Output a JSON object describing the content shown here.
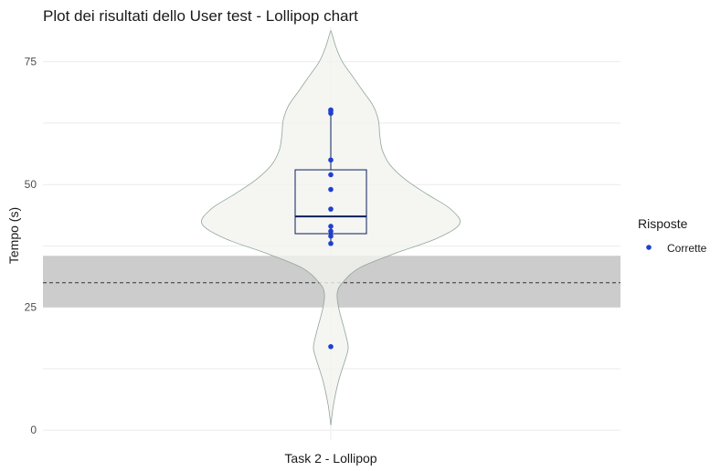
{
  "chart_data": {
    "type": "violin-box-scatter",
    "title": "Plot dei risultati dello User test - Lollipop chart",
    "xlabel": "",
    "ylabel": "Tempo (s)",
    "categories": [
      "Task 2 - Lollipop"
    ],
    "ylim": [
      -2,
      82
    ],
    "yticks": [
      0,
      25,
      50,
      75
    ],
    "points": [
      17,
      38,
      39.5,
      40.5,
      41.5,
      45,
      49,
      52,
      55,
      64.5,
      65,
      65.2
    ],
    "box": {
      "q1": 40,
      "median": 43.5,
      "q3": 53,
      "whisker_low": 38,
      "whisker_high": 65.2
    },
    "violin": [
      [
        1,
        0
      ],
      [
        5,
        0.02
      ],
      [
        10,
        0.06
      ],
      [
        15,
        0.12
      ],
      [
        17,
        0.135
      ],
      [
        20,
        0.11
      ],
      [
        25,
        0.06
      ],
      [
        28,
        0.05
      ],
      [
        30,
        0.09
      ],
      [
        33,
        0.22
      ],
      [
        36,
        0.5
      ],
      [
        39,
        0.82
      ],
      [
        42,
        1.0
      ],
      [
        45,
        0.93
      ],
      [
        48,
        0.75
      ],
      [
        51,
        0.58
      ],
      [
        54,
        0.46
      ],
      [
        57,
        0.4
      ],
      [
        60,
        0.38
      ],
      [
        63,
        0.37
      ],
      [
        66,
        0.33
      ],
      [
        69,
        0.25
      ],
      [
        72,
        0.17
      ],
      [
        75,
        0.09
      ],
      [
        78,
        0.04
      ],
      [
        81,
        0.005
      ]
    ],
    "reference": {
      "mean": 30,
      "band": [
        25,
        35.5
      ]
    },
    "legend": {
      "title": "Risposte",
      "items": [
        {
          "label": "Corrette",
          "color": "#1f3fd0"
        }
      ],
      "position": "right"
    },
    "colors": {
      "point": "#1f3fd0",
      "box": "#0b1f5c",
      "violin_fill": "#f3f3ef",
      "violin_stroke": "#8fa69b",
      "band": "#cccccc",
      "grid": "#ebebeb"
    }
  }
}
